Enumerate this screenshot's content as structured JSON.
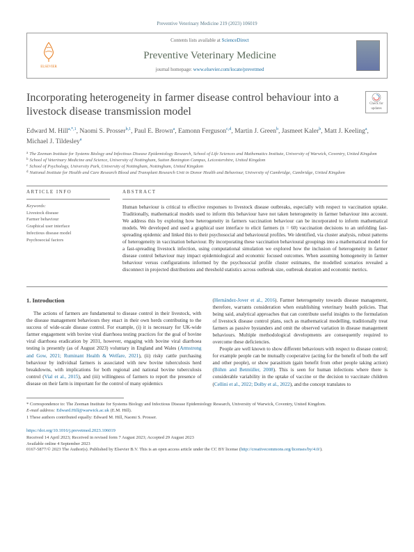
{
  "citation": "Preventive Veterinary Medicine 219 (2023) 106019",
  "header": {
    "contents_prefix": "Contents lists available at ",
    "contents_link": "ScienceDirect",
    "journal": "Preventive Veterinary Medicine",
    "homepage_prefix": "journal homepage: ",
    "homepage_url": "www.elsevier.com/locate/prevetmed",
    "publisher": "ELSEVIER"
  },
  "title": "Incorporating heterogeneity in farmer disease control behaviour into a livestock disease transmission model",
  "check_badge": "Check for updates",
  "authors_html": "Edward M. Hill<span class='sup'>a,*,1</span>, Naomi S. Prosser<span class='sup'>b,1</span>, Paul E. Brown<span class='sup'>a</span>, Eamonn Ferguson<span class='sup'>c,d</span>, Martin J. Green<span class='sup'>b</span>, Jasmeet Kaler<span class='sup'>b</span>, Matt J. Keeling<span class='sup'>a</span>, Michael J. Tildesley<span class='sup'>a</span>",
  "affiliations": [
    {
      "s": "a",
      "t": "The Zeeman Institute for Systems Biology and Infectious Disease Epidemiology Research, School of Life Sciences and Mathematics Institute, University of Warwick, Coventry, United Kingdom"
    },
    {
      "s": "b",
      "t": "School of Veterinary Medicine and Science, University of Nottingham, Sutton Bonington Campus, Leicestershire, United Kingdom"
    },
    {
      "s": "c",
      "t": "School of Psychology, University Park, University of Nottingham, Nottingham, United Kingdom"
    },
    {
      "s": "d",
      "t": "National Institute for Health and Care Research Blood and Transplant Research Unit in Donor Health and Behaviour, University of Cambridge, Cambridge, United Kingdom"
    }
  ],
  "labels": {
    "article_info": "ARTICLE INFO",
    "abstract": "ABSTRACT",
    "keywords": "Keywords:"
  },
  "keywords": "Livestock disease\nFarmer behaviour\nGraphical user interface\nInfectious disease model\nPsychosocial factors",
  "abstract": "Human behaviour is critical to effective responses to livestock disease outbreaks, especially with respect to vaccination uptake. Traditionally, mathematical models used to inform this behaviour have not taken heterogeneity in farmer behaviour into account. We address this by exploring how heterogeneity in farmers vaccination behaviour can be incorporated to inform mathematical models. We developed and used a graphical user interface to elicit farmers (n = 60) vaccination decisions to an unfolding fast-spreading epidemic and linked this to their psychosocial and behavioural profiles. We identified, via cluster analysis, robust patterns of heterogeneity in vaccination behaviour. By incorporating these vaccination behavioural groupings into a mathematical model for a fast-spreading livestock infection, using computational simulation we explored how the inclusion of heterogeneity in farmer disease control behaviour may impact epidemiological and economic focused outcomes. When assuming homogeneity in farmer behaviour versus configurations informed by the psychosocial profile cluster estimates, the modelled scenarios revealed a disconnect in projected distributions and threshold statistics across outbreak size, outbreak duration and economic metrics.",
  "intro_heading": "1. Introduction",
  "col1_p1": "The actions of farmers are fundamental to disease control in their livestock, with the disease management behaviours they enact in their own herds contributing to the success of wide-scale disease control. For example, (i) it is necessary for UK-wide farmer engagement with bovine viral diarrhoea testing practices for the goal of bovine viral diarrhoea eradication by 2031, however, engaging with bovine viral diarrhoea testing is presently (as of August 2023) voluntary in England and Wales (",
  "col1_link1": "Armstrong and Gow, 2021; Ruminant Health & Welfare, 2021",
  "col1_p2": "), (ii) risky cattle purchasing behaviour by individual farmers is associated with new bovine tuberculosis herd breakdowns, with implications for both regional and national bovine tuberculosis control (",
  "col1_link2": "Vial et al., 2015",
  "col1_p3": "), and (iii) willingness of farmers to report the presence of disease on their farm is important for the control of many epidemics",
  "col2_p1a": "(",
  "col2_link1": "Hernández-Jover et al., 2016",
  "col2_p1b": "). Farmer heterogeneity towards disease management, therefore, warrants consideration when establishing veterinary health policies. That being said, analytical approaches that can contribute useful insights to the formulation of livestock disease control plans, such as mathematical modelling, traditionally treat farmers as passive bystanders and omit the observed variation in disease management behaviours. Multiple methodological developments are consequently required to overcome these deficiencies.",
  "col2_p2a": "People are well known to show different behaviours with respect to disease control; for example people can be mutually cooperative (acting for the benefit of both the self and other people), or show parasitism (gain benefit from other people taking action) (",
  "col2_link2": "Böhm and Betmüller, 2008",
  "col2_p2b": "). This is seen for human infections where there is considerable variability in the uptake of vaccine or the decision to vaccinate children (",
  "col2_link3": "Cellini et al., 2022; Dolby et al., 2022",
  "col2_p2c": "), and the concept translates to",
  "footnotes": {
    "corr": "* Correspondence to: The Zeeman Institute for Systems Biology and Infectious Disease Epidemiology Research, University of Warwick, Coventry, United Kingdom.",
    "email_label": "E-mail address: ",
    "email": "Edward.Hill@warwick.ac.uk",
    "email_suffix": " (E.M. Hill).",
    "equal": "1 These authors contributed equally: Edward M. Hill, Naomi S. Prosser."
  },
  "doi": "https://doi.org/10.1016/j.prevetmed.2023.106019",
  "history": "Received 14 April 2023; Received in revised form 7 August 2023; Accepted 29 August 2023",
  "available": "Available online 4 September 2023",
  "copyright_prefix": "0167-5877/© 2023 The Author(s). Published by Elsevier B.V. This is an open access article under the CC BY license (",
  "cc_url": "http://creativecommons.org/licenses/by/4.0/",
  "copyright_suffix": ")."
}
